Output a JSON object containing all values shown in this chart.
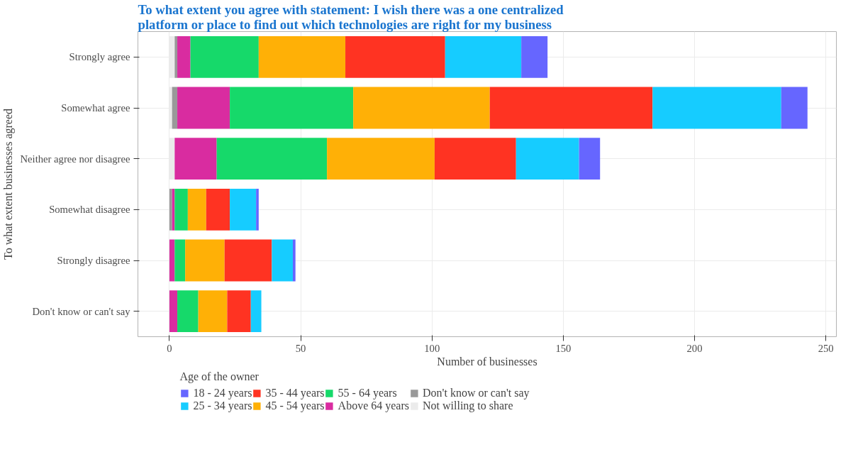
{
  "chart_data": {
    "type": "bar",
    "orientation": "horizontal",
    "stacked": true,
    "title": "To what extent you agree with statement: I wish there was a one centralized\nplatform or place to find out which technologies are right for my business",
    "xlabel": "Number of businesses",
    "ylabel": "To what extent businesses agreed",
    "legend_title": "Age of the owner",
    "categories": [
      "Strongly agree",
      "Somewhat agree",
      "Neither agree nor disagree",
      "Somewhat disagree",
      "Strongly disagree",
      "Don't know or can't say"
    ],
    "series": [
      {
        "name": "Not willing to share",
        "color": "#ebebeb",
        "values": [
          2,
          1,
          2,
          0,
          0,
          0
        ]
      },
      {
        "name": "Don't know or can't say",
        "color": "#999999",
        "values": [
          1,
          2,
          0,
          1,
          0,
          0
        ]
      },
      {
        "name": "Above 64 years",
        "color": "#d92ca0",
        "values": [
          5,
          20,
          16,
          1,
          2,
          3
        ]
      },
      {
        "name": "55 - 64 years",
        "color": "#16d96a",
        "values": [
          26,
          47,
          42,
          5,
          4,
          8
        ]
      },
      {
        "name": "45 - 54 years",
        "color": "#ffb006",
        "values": [
          33,
          52,
          41,
          7,
          15,
          11
        ]
      },
      {
        "name": "35 - 44 years",
        "color": "#ff3322",
        "values": [
          38,
          62,
          31,
          9,
          18,
          9
        ]
      },
      {
        "name": "25 - 34 years",
        "color": "#16ccff",
        "values": [
          29,
          49,
          24,
          10,
          8,
          4
        ]
      },
      {
        "name": "18 - 24 years",
        "color": "#6666ff",
        "values": [
          10,
          10,
          8,
          1,
          1,
          0
        ]
      }
    ],
    "xlim": [
      -12,
      254
    ],
    "xticks": [
      0,
      50,
      100,
      150,
      200,
      250
    ],
    "grid": true,
    "legend": "bottom"
  }
}
